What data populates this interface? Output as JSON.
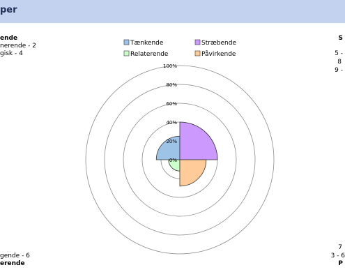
{
  "header": {
    "title": "per"
  },
  "left_top": {
    "heading": "ende",
    "items": [
      "nerende - 2",
      "gisk - 4"
    ]
  },
  "left_bottom": {
    "item": "gende - 6",
    "heading": "erende"
  },
  "right_top": {
    "heading": "S",
    "items": [
      "5 -",
      "8",
      "9 -"
    ]
  },
  "right_bottom": {
    "items": [
      "7",
      "3 - 6"
    ],
    "heading": "P"
  },
  "chart_data": {
    "type": "polar-area",
    "radial_ticks": [
      "0%",
      "20%",
      "40%",
      "60%",
      "80%",
      "100%"
    ],
    "rlim": [
      0,
      100
    ],
    "series": [
      {
        "name": "Tænkende",
        "value": 25,
        "color": "#9dc3e6"
      },
      {
        "name": "Stræbende",
        "value": 40,
        "color": "#cc99ff"
      },
      {
        "name": "Relaterende",
        "value": 12,
        "color": "#ccffcc"
      },
      {
        "name": "Påvirkende",
        "value": 28,
        "color": "#ffcc99"
      }
    ]
  }
}
